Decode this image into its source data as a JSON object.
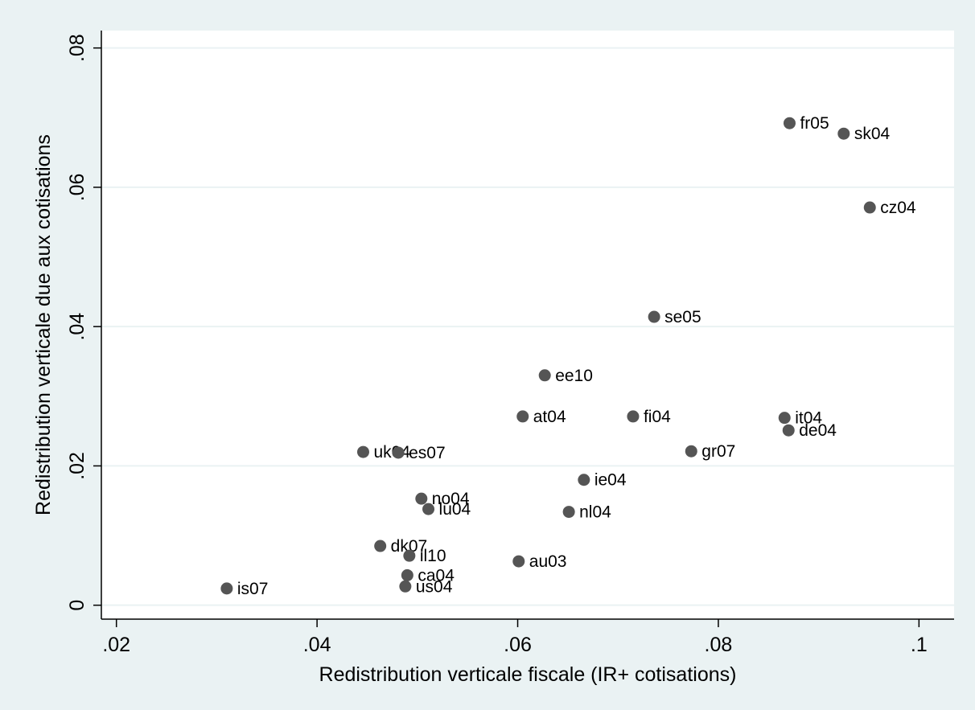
{
  "chart_data": {
    "type": "scatter",
    "title": "",
    "xlabel": "Redistribution verticale fiscale (IR+ cotisations)",
    "ylabel": "Redistribution verticale due aux cotisations",
    "xlim": [
      0.0185,
      0.1035
    ],
    "ylim": [
      -0.002,
      0.0825
    ],
    "grid": true,
    "legend": "none",
    "x_ticks": [
      {
        "value": 0.02,
        "label": ".02"
      },
      {
        "value": 0.04,
        "label": ".04"
      },
      {
        "value": 0.06,
        "label": ".06"
      },
      {
        "value": 0.08,
        "label": ".08"
      },
      {
        "value": 0.1,
        "label": ".1"
      }
    ],
    "y_ticks": [
      {
        "value": 0.0,
        "label": "0"
      },
      {
        "value": 0.02,
        "label": ".02"
      },
      {
        "value": 0.04,
        "label": ".04"
      },
      {
        "value": 0.06,
        "label": ".06"
      },
      {
        "value": 0.08,
        "label": ".08"
      }
    ],
    "points": [
      {
        "label": "fr05",
        "x": 0.0871,
        "y": 0.0692
      },
      {
        "label": "sk04",
        "x": 0.0925,
        "y": 0.0677
      },
      {
        "label": "cz04",
        "x": 0.0951,
        "y": 0.0571
      },
      {
        "label": "se05",
        "x": 0.0736,
        "y": 0.0414
      },
      {
        "label": "ee10",
        "x": 0.0627,
        "y": 0.033
      },
      {
        "label": "at04",
        "x": 0.0605,
        "y": 0.0271
      },
      {
        "label": "fi04",
        "x": 0.0715,
        "y": 0.0271
      },
      {
        "label": "it04",
        "x": 0.0866,
        "y": 0.0269
      },
      {
        "label": "de04",
        "x": 0.087,
        "y": 0.0251
      },
      {
        "label": "gr07",
        "x": 0.0773,
        "y": 0.0221
      },
      {
        "label": "uk04",
        "x": 0.0446,
        "y": 0.022
      },
      {
        "label": "es07",
        "x": 0.0481,
        "y": 0.0219
      },
      {
        "label": "ie04",
        "x": 0.0666,
        "y": 0.018
      },
      {
        "label": "no04",
        "x": 0.0504,
        "y": 0.0153
      },
      {
        "label": "lu04",
        "x": 0.0511,
        "y": 0.0138
      },
      {
        "label": "nl04",
        "x": 0.0651,
        "y": 0.0134
      },
      {
        "label": "dk07",
        "x": 0.0463,
        "y": 0.0085
      },
      {
        "label": "il10",
        "x": 0.0492,
        "y": 0.0071
      },
      {
        "label": "au03",
        "x": 0.0601,
        "y": 0.0063
      },
      {
        "label": "ca04",
        "x": 0.049,
        "y": 0.0043
      },
      {
        "label": "us04",
        "x": 0.0488,
        "y": 0.0027
      },
      {
        "label": "is07",
        "x": 0.031,
        "y": 0.0024
      }
    ],
    "colors": {
      "background": "#eaf2f3",
      "plot_area": "#ffffff",
      "grid": "#eaf2f3",
      "marker": "#555555",
      "axis": "#000000"
    }
  }
}
